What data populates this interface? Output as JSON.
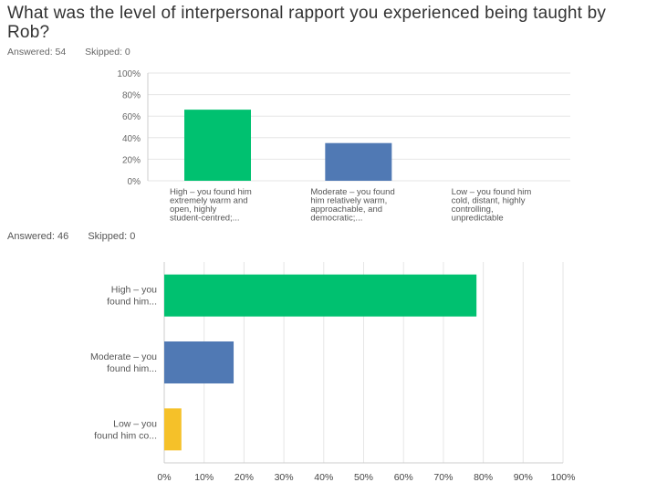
{
  "title": "What was the level of interpersonal rapport you experienced being taught by Rob?",
  "colors": {
    "green": "#00c170",
    "blue": "#5079b4",
    "yellow": "#f5c129",
    "grid": "#e6e6e6",
    "axis": "#cccccc"
  },
  "chart_data": [
    {
      "type": "bar",
      "answered_label": "Answered: 54",
      "skipped_label": "Skipped: 0",
      "ylim": [
        0,
        100
      ],
      "y_ticks": [
        "0%",
        "20%",
        "40%",
        "60%",
        "80%",
        "100%"
      ],
      "categories": [
        {
          "lines": [
            "High – you found him",
            "extremely warm and",
            "open, highly",
            "student-centred;..."
          ],
          "value": 66,
          "color": "green"
        },
        {
          "lines": [
            "Moderate – you found",
            "him relatively warm,",
            "approachable, and",
            "democratic;..."
          ],
          "value": 35,
          "color": "blue"
        },
        {
          "lines": [
            "Low – you found him",
            "cold, distant, highly",
            "controlling,",
            "unpredictable"
          ],
          "value": 0,
          "color": "yellow"
        }
      ]
    },
    {
      "type": "bar-horizontal",
      "answered_label": "Answered: 46",
      "skipped_label": "Skipped: 0",
      "xlim": [
        0,
        100
      ],
      "x_ticks": [
        "0%",
        "10%",
        "20%",
        "30%",
        "40%",
        "50%",
        "60%",
        "70%",
        "80%",
        "90%",
        "100%"
      ],
      "categories": [
        {
          "lines": [
            "High – you",
            "found him..."
          ],
          "value": 78.3,
          "color": "green"
        },
        {
          "lines": [
            "Moderate – you",
            "found him..."
          ],
          "value": 17.4,
          "color": "blue"
        },
        {
          "lines": [
            "Low – you",
            "found him co..."
          ],
          "value": 4.3,
          "color": "yellow"
        }
      ]
    }
  ]
}
